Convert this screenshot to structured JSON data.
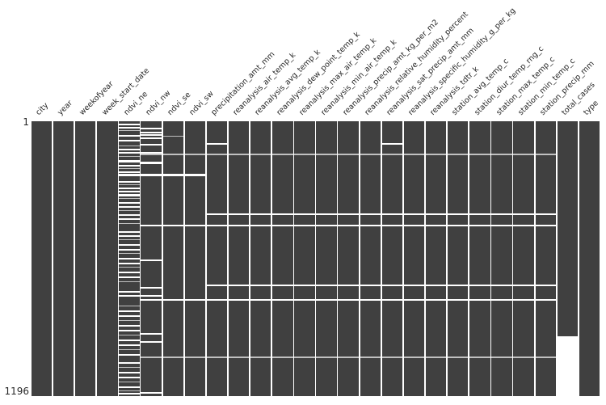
{
  "chart_data": {
    "type": "heatmap",
    "variant": "missingno-missing-data-matrix",
    "title": "",
    "xlabel": "",
    "ylabel": "",
    "grid": false,
    "legend": "none",
    "n_rows": 1196,
    "n_columns": 26,
    "row_axis": {
      "top_label": "1",
      "bottom_label": "1196"
    },
    "columns": [
      "city",
      "year",
      "weekofyear",
      "week_start_date",
      "ndvi_ne",
      "ndvi_nw",
      "ndvi_se",
      "ndvi_sw",
      "precipitation_amt_mm",
      "reanalysis_air_temp_k",
      "reanalysis_avg_temp_k",
      "reanalysis_dew_point_temp_k",
      "reanalysis_max_air_temp_k",
      "reanalysis_min_air_temp_k",
      "reanalysis_precip_amt_kg_per_m2",
      "reanalysis_relative_humidity_percent",
      "reanalysis_sat_precip_amt_mm",
      "reanalysis_specific_humidity_g_per_kg",
      "reanalysis_tdtr_k",
      "station_avg_temp_c",
      "station_diur_temp_rng_c",
      "station_max_temp_c",
      "station_min_temp_c",
      "station_precip_mm",
      "total_cases",
      "type"
    ],
    "colors": {
      "present_data": "#404040",
      "missing_data": "#ffffff",
      "thin_missing_line": "#c0c0c0",
      "label_text": "#262626",
      "background": "#ffffff"
    },
    "missing": {
      "per_column_stripes": {
        "ndvi_ne": [
          [
            11,
            17
          ],
          [
            25,
            31
          ],
          [
            39,
            42
          ],
          [
            60,
            66
          ],
          [
            81,
            88
          ],
          [
            106,
            109
          ],
          [
            120,
            126
          ],
          [
            134,
            140
          ],
          [
            151,
            154
          ],
          [
            169,
            179
          ],
          [
            190,
            196
          ],
          [
            204,
            207
          ],
          [
            218,
            224
          ],
          [
            260,
            266
          ],
          [
            274,
            277
          ],
          [
            288,
            294
          ],
          [
            302,
            308
          ],
          [
            317,
            327
          ],
          [
            334,
            337
          ],
          [
            352,
            358
          ],
          [
            369,
            375
          ],
          [
            387,
            390
          ],
          [
            405,
            411
          ],
          [
            422,
            428
          ],
          [
            443,
            446
          ],
          [
            478,
            484
          ],
          [
            496,
            502
          ],
          [
            514,
            517
          ],
          [
            535,
            541
          ],
          [
            556,
            562
          ],
          [
            573,
            576
          ],
          [
            595,
            601
          ],
          [
            616,
            622
          ],
          [
            633,
            636
          ],
          [
            654,
            660
          ],
          [
            675,
            681
          ],
          [
            697,
            700
          ],
          [
            739,
            745
          ],
          [
            756,
            762
          ],
          [
            802,
            805
          ],
          [
            823,
            829
          ],
          [
            844,
            850
          ],
          [
            865,
            868
          ],
          [
            887,
            893
          ],
          [
            908,
            914
          ],
          [
            929,
            932
          ],
          [
            950,
            956
          ],
          [
            971,
            977
          ],
          [
            992,
            995
          ],
          [
            1013,
            1019
          ],
          [
            1048,
            1054
          ],
          [
            1069,
            1072
          ],
          [
            1090,
            1096
          ],
          [
            1112,
            1118
          ],
          [
            1133,
            1136
          ],
          [
            1154,
            1160
          ],
          [
            1172,
            1175
          ],
          [
            1182,
            1188
          ]
        ],
        "ndvi_nw": [
          [
            28,
            34
          ],
          [
            46,
            52
          ],
          [
            56,
            62
          ],
          [
            70,
            76
          ],
          [
            98,
            104
          ],
          [
            134,
            140
          ],
          [
            176,
            186
          ],
          [
            601,
            607
          ],
          [
            721,
            727
          ],
          [
            756,
            762
          ],
          [
            921,
            927
          ],
          [
            957,
            963
          ],
          [
            1178,
            1184
          ]
        ],
        "ndvi_se": [
          [
            63,
            64
          ]
        ]
      },
      "row_spans": [
        {
          "rows": [
            95,
            101
          ],
          "from": "precipitation_amt_mm",
          "to": "precipitation_amt_mm"
        },
        {
          "rows": [
            95,
            101
          ],
          "from": "reanalysis_sat_precip_amt_mm",
          "to": "reanalysis_sat_precip_amt_mm"
        },
        {
          "rows": [
            143,
            145
          ],
          "from": "ndvi_nw",
          "to": "station_precip_mm"
        },
        {
          "rows": [
            228,
            240
          ],
          "from": "ndvi_ne",
          "to": "ndvi_sw"
        },
        {
          "rows": [
            402,
            407
          ],
          "from": "precipitation_amt_mm",
          "to": "station_precip_mm"
        },
        {
          "rows": [
            452,
            458
          ],
          "from": "ndvi_nw",
          "to": "station_precip_mm"
        },
        {
          "rows": [
            712,
            717
          ],
          "from": "precipitation_amt_mm",
          "to": "station_precip_mm"
        },
        {
          "rows": [
            775,
            782
          ],
          "from": "ndvi_nw",
          "to": "station_precip_mm"
        },
        {
          "rows": [
            1026,
            1028
          ],
          "from": "ndvi_nw",
          "to": "station_precip_mm"
        },
        {
          "rows": [
            937,
            1196
          ],
          "from": "total_cases",
          "to": "total_cases"
        }
      ]
    }
  }
}
